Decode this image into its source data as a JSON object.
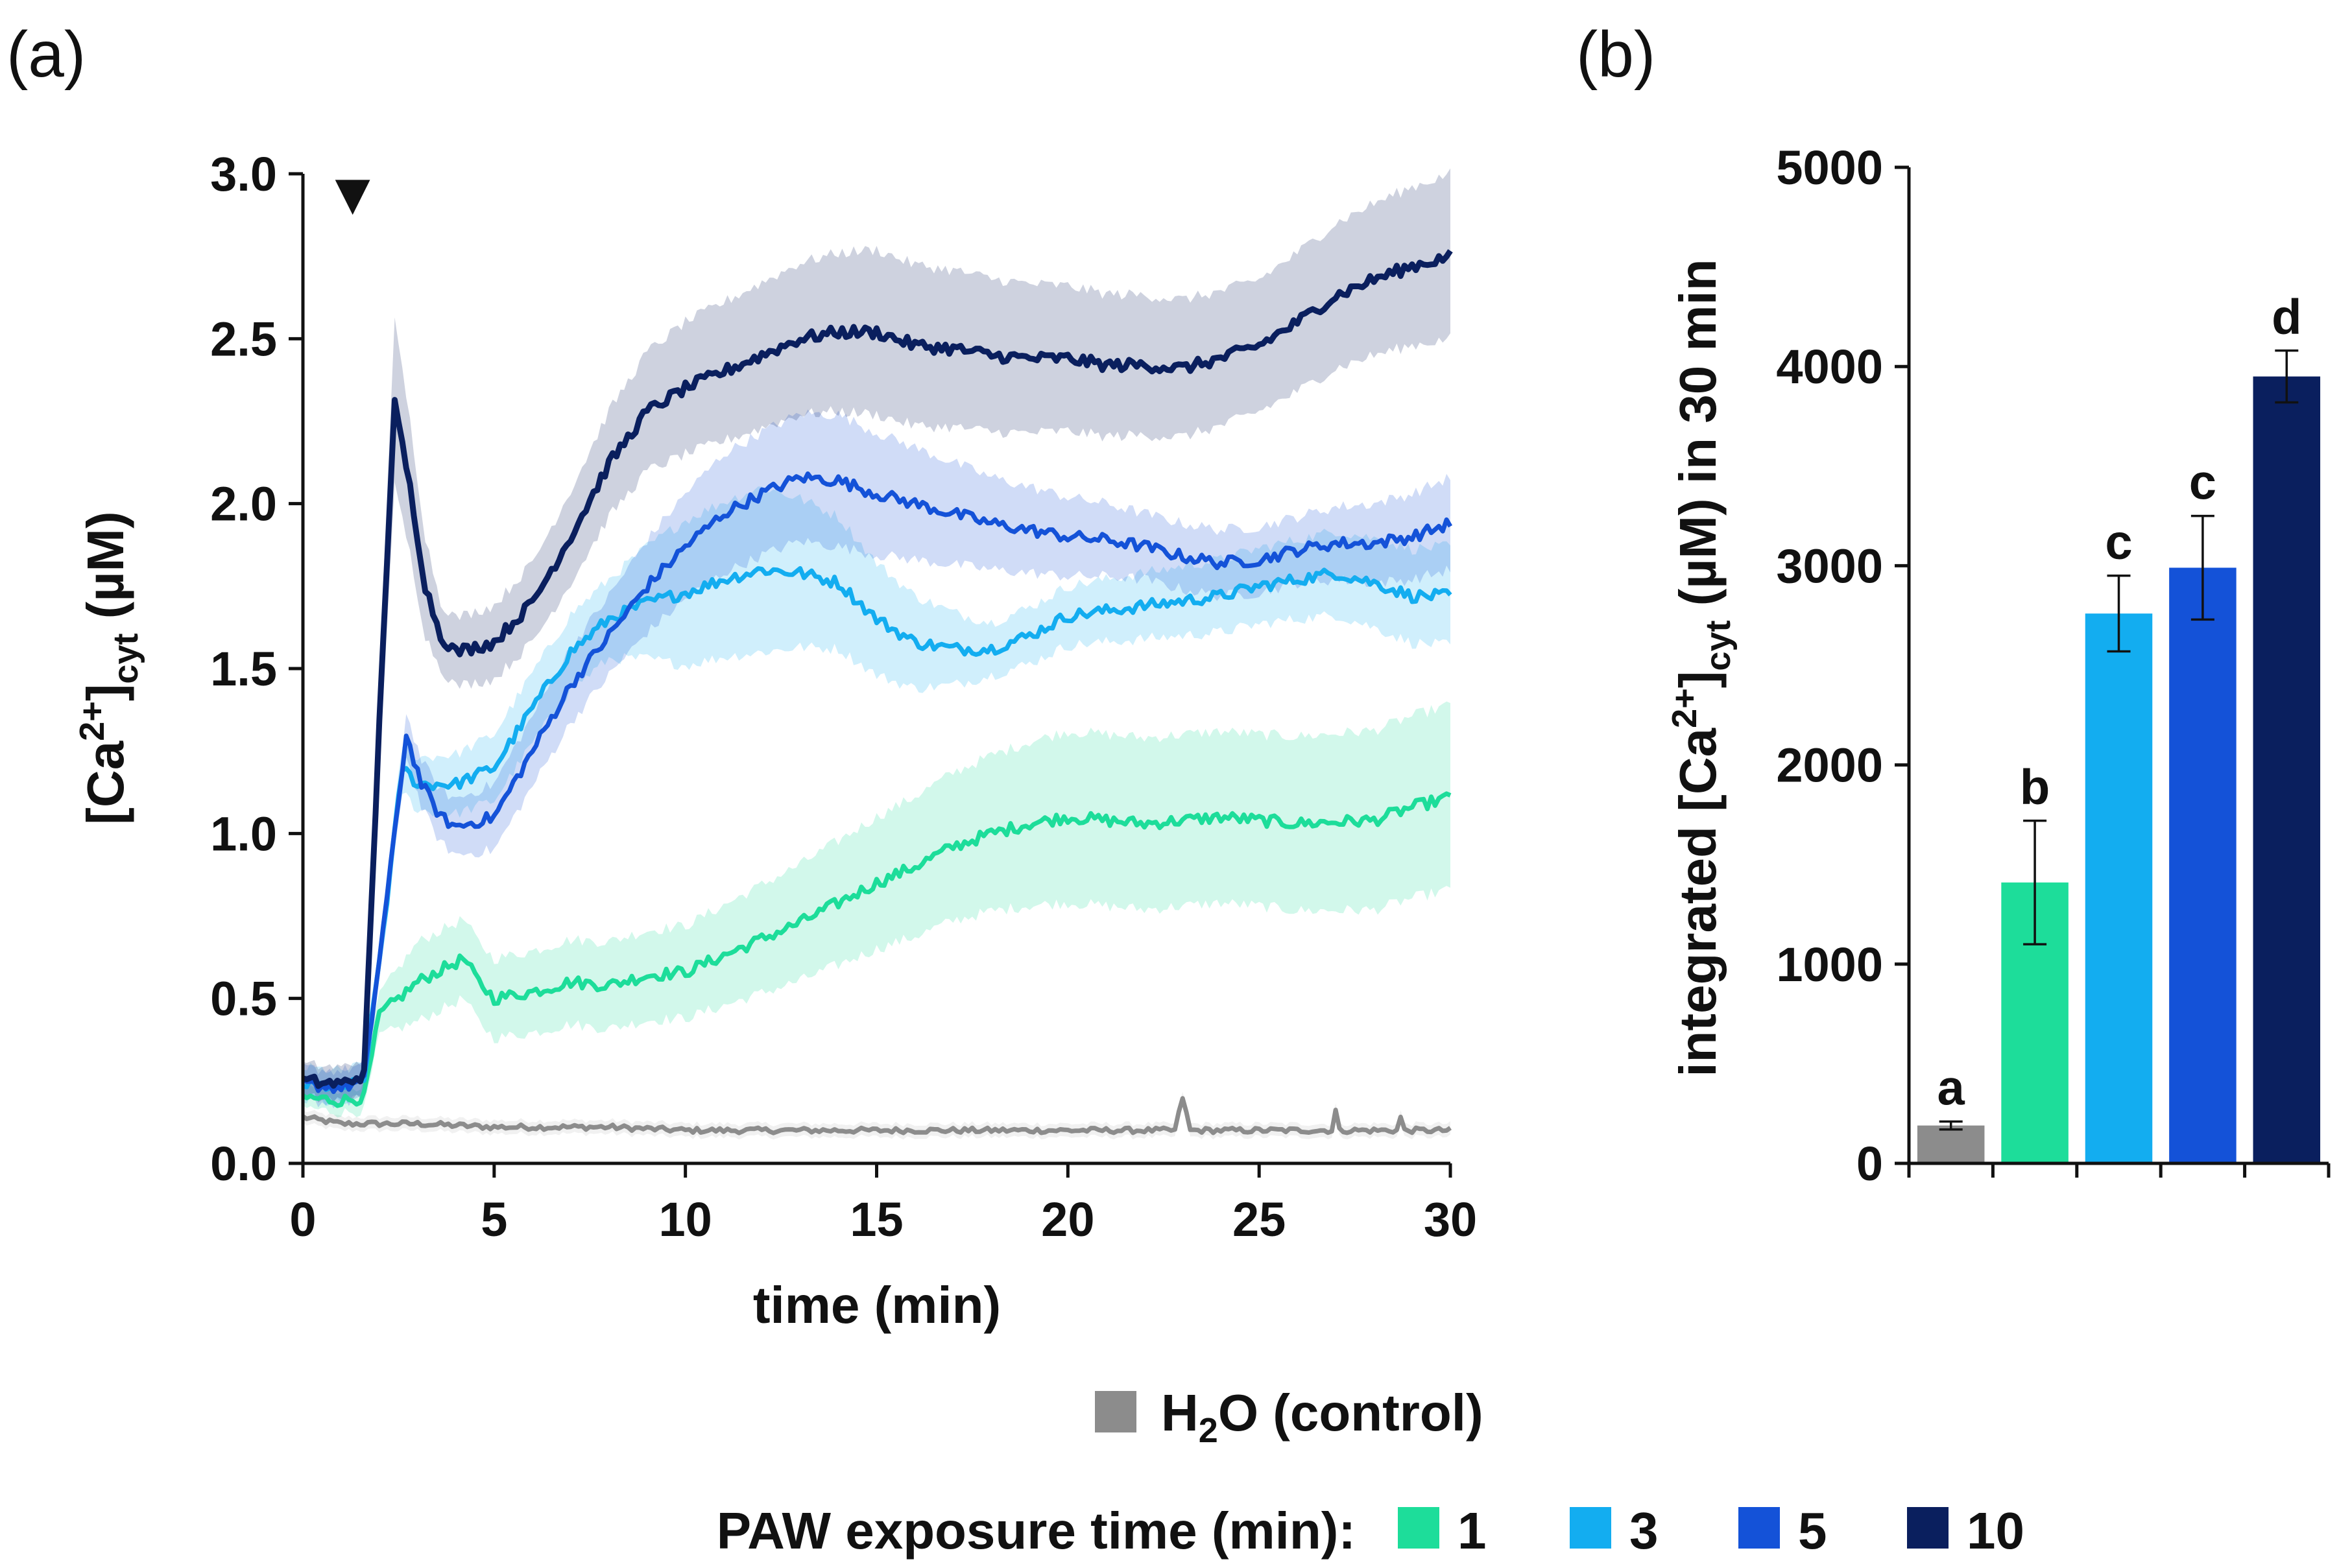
{
  "chart_data": [
    {
      "panel": "(a)",
      "type": "line",
      "ylabel_base": "[Ca",
      "ylabel_sup": "2+",
      "ylabel_close": "]",
      "ylabel_sub": "cyt",
      "ylabel_unit": " (µM)",
      "xlabel": "time (min)",
      "xlim": [
        0,
        30
      ],
      "ylim": [
        0,
        3
      ],
      "xticks": [
        "0",
        "5",
        "10",
        "15",
        "20",
        "25",
        "30"
      ],
      "yticks": [
        "0.0",
        "0.5",
        "1.0",
        "1.5",
        "2.0",
        "2.5",
        "3.0"
      ],
      "annotation": "▼",
      "annotation_x": 1.3,
      "series": [
        {
          "name": "H2O (control)",
          "color": "#8c8c8c",
          "points": [
            [
              0,
              0.14
            ],
            [
              1,
              0.12
            ],
            [
              2,
              0.12
            ],
            [
              3,
              0.12
            ],
            [
              5,
              0.11
            ],
            [
              8,
              0.11
            ],
            [
              10,
              0.1
            ],
            [
              15,
              0.1
            ],
            [
              20,
              0.1
            ],
            [
              22.8,
              0.1
            ],
            [
              23,
              0.2
            ],
            [
              23.2,
              0.1
            ],
            [
              26.9,
              0.1
            ],
            [
              27,
              0.16
            ],
            [
              27.1,
              0.1
            ],
            [
              28.6,
              0.1
            ],
            [
              28.7,
              0.14
            ],
            [
              28.8,
              0.1
            ],
            [
              30,
              0.1
            ]
          ],
          "sd": [
            [
              0,
              0.02
            ],
            [
              30,
              0.02
            ]
          ]
        },
        {
          "name": "1",
          "color": "#1ddd9a",
          "points": [
            [
              0,
              0.2
            ],
            [
              1,
              0.19
            ],
            [
              1.6,
              0.2
            ],
            [
              2,
              0.45
            ],
            [
              2.5,
              0.5
            ],
            [
              3,
              0.55
            ],
            [
              3.5,
              0.58
            ],
            [
              4.2,
              0.62
            ],
            [
              4.6,
              0.55
            ],
            [
              5,
              0.5
            ],
            [
              6,
              0.52
            ],
            [
              7,
              0.55
            ],
            [
              8,
              0.54
            ],
            [
              9,
              0.57
            ],
            [
              10,
              0.58
            ],
            [
              11,
              0.63
            ],
            [
              12,
              0.68
            ],
            [
              13,
              0.73
            ],
            [
              14,
              0.79
            ],
            [
              15,
              0.85
            ],
            [
              16,
              0.9
            ],
            [
              17,
              0.96
            ],
            [
              18,
              1.0
            ],
            [
              19,
              1.03
            ],
            [
              20,
              1.05
            ],
            [
              22,
              1.03
            ],
            [
              24,
              1.05
            ],
            [
              26,
              1.03
            ],
            [
              28,
              1.04
            ],
            [
              29,
              1.08
            ],
            [
              30,
              1.11
            ]
          ],
          "sd": [
            [
              0,
              0.03
            ],
            [
              1.6,
              0.04
            ],
            [
              3,
              0.12
            ],
            [
              5,
              0.12
            ],
            [
              10,
              0.14
            ],
            [
              15,
              0.2
            ],
            [
              20,
              0.26
            ],
            [
              25,
              0.26
            ],
            [
              30,
              0.28
            ]
          ]
        },
        {
          "name": "3",
          "color": "#13adf0",
          "points": [
            [
              0,
              0.24
            ],
            [
              1,
              0.23
            ],
            [
              1.6,
              0.25
            ],
            [
              2.2,
              0.8
            ],
            [
              2.6,
              1.2
            ],
            [
              3,
              1.15
            ],
            [
              4,
              1.15
            ],
            [
              5,
              1.2
            ],
            [
              6,
              1.38
            ],
            [
              7,
              1.55
            ],
            [
              8,
              1.65
            ],
            [
              9,
              1.7
            ],
            [
              10,
              1.73
            ],
            [
              11,
              1.77
            ],
            [
              12,
              1.8
            ],
            [
              13,
              1.79
            ],
            [
              14,
              1.76
            ],
            [
              15,
              1.65
            ],
            [
              16,
              1.58
            ],
            [
              17,
              1.56
            ],
            [
              18,
              1.56
            ],
            [
              19,
              1.6
            ],
            [
              20,
              1.66
            ],
            [
              22,
              1.69
            ],
            [
              24,
              1.72
            ],
            [
              25,
              1.75
            ],
            [
              26,
              1.77
            ],
            [
              27,
              1.79
            ],
            [
              28,
              1.76
            ],
            [
              29,
              1.72
            ],
            [
              30,
              1.72
            ]
          ],
          "sd": [
            [
              0,
              0.05
            ],
            [
              1.6,
              0.05
            ],
            [
              3,
              0.08
            ],
            [
              5,
              0.1
            ],
            [
              8,
              0.12
            ],
            [
              10,
              0.22
            ],
            [
              12,
              0.25
            ],
            [
              14,
              0.2
            ],
            [
              18,
              0.08
            ],
            [
              22,
              0.1
            ],
            [
              26,
              0.12
            ],
            [
              30,
              0.15
            ]
          ]
        },
        {
          "name": "5",
          "color": "#1452d8",
          "points": [
            [
              0,
              0.24
            ],
            [
              1,
              0.23
            ],
            [
              1.6,
              0.25
            ],
            [
              2.3,
              0.9
            ],
            [
              2.7,
              1.3
            ],
            [
              3.1,
              1.15
            ],
            [
              3.6,
              1.05
            ],
            [
              4,
              1.02
            ],
            [
              5,
              1.05
            ],
            [
              6,
              1.25
            ],
            [
              7,
              1.45
            ],
            [
              8,
              1.6
            ],
            [
              9,
              1.75
            ],
            [
              10,
              1.87
            ],
            [
              11,
              1.97
            ],
            [
              12,
              2.03
            ],
            [
              13,
              2.08
            ],
            [
              14,
              2.07
            ],
            [
              15,
              2.03
            ],
            [
              16,
              2.0
            ],
            [
              17,
              1.97
            ],
            [
              18,
              1.94
            ],
            [
              19,
              1.92
            ],
            [
              20,
              1.9
            ],
            [
              21,
              1.89
            ],
            [
              22,
              1.87
            ],
            [
              23,
              1.84
            ],
            [
              24,
              1.82
            ],
            [
              25,
              1.83
            ],
            [
              26,
              1.86
            ],
            [
              27,
              1.88
            ],
            [
              28,
              1.88
            ],
            [
              29,
              1.9
            ],
            [
              30,
              1.94
            ]
          ],
          "sd": [
            [
              0,
              0.05
            ],
            [
              1.6,
              0.05
            ],
            [
              3,
              0.07
            ],
            [
              5,
              0.1
            ],
            [
              8,
              0.12
            ],
            [
              11,
              0.18
            ],
            [
              14,
              0.2
            ],
            [
              18,
              0.14
            ],
            [
              22,
              0.1
            ],
            [
              26,
              0.1
            ],
            [
              30,
              0.14
            ]
          ]
        },
        {
          "name": "10",
          "color": "#0a1f5e",
          "points": [
            [
              0,
              0.25
            ],
            [
              1,
              0.24
            ],
            [
              1.6,
              0.27
            ],
            [
              2.1,
              1.6
            ],
            [
              2.4,
              2.3
            ],
            [
              2.8,
              2.05
            ],
            [
              3.2,
              1.75
            ],
            [
              3.6,
              1.6
            ],
            [
              4,
              1.55
            ],
            [
              5,
              1.58
            ],
            [
              6,
              1.7
            ],
            [
              7,
              1.9
            ],
            [
              8,
              2.12
            ],
            [
              9,
              2.28
            ],
            [
              10,
              2.35
            ],
            [
              11,
              2.4
            ],
            [
              12,
              2.45
            ],
            [
              13,
              2.5
            ],
            [
              14,
              2.52
            ],
            [
              15,
              2.52
            ],
            [
              16,
              2.48
            ],
            [
              17,
              2.47
            ],
            [
              18,
              2.45
            ],
            [
              19,
              2.44
            ],
            [
              20,
              2.44
            ],
            [
              21,
              2.42
            ],
            [
              22,
              2.42
            ],
            [
              23,
              2.41
            ],
            [
              24,
              2.44
            ],
            [
              25,
              2.48
            ],
            [
              26,
              2.55
            ],
            [
              27,
              2.63
            ],
            [
              28,
              2.68
            ],
            [
              29,
              2.72
            ],
            [
              30,
              2.75
            ]
          ],
          "sd": [
            [
              0,
              0.05
            ],
            [
              1.6,
              0.05
            ],
            [
              2.4,
              0.25
            ],
            [
              3.6,
              0.1
            ],
            [
              6,
              0.12
            ],
            [
              10,
              0.2
            ],
            [
              15,
              0.25
            ],
            [
              20,
              0.22
            ],
            [
              25,
              0.2
            ],
            [
              30,
              0.25
            ]
          ]
        }
      ]
    },
    {
      "panel": "(b)",
      "type": "bar",
      "ylabel_base": "integrated [Ca",
      "ylabel_sup": "2+",
      "ylabel_close": "]",
      "ylabel_sub": "cyt",
      "ylabel_unit": " (µM) in 30 min",
      "ylim": [
        0,
        5000
      ],
      "yticks": [
        "0",
        "1000",
        "2000",
        "3000",
        "4000",
        "5000"
      ],
      "categories": [
        "H2O (control)",
        "1",
        "3",
        "5",
        "10"
      ],
      "values": [
        190,
        1410,
        2760,
        2990,
        3950
      ],
      "errors": [
        20,
        310,
        190,
        260,
        130
      ],
      "colors": [
        "#8c8c8c",
        "#1ddd9a",
        "#13adf0",
        "#1452d8",
        "#0a1f5e"
      ],
      "letters": [
        "a",
        "b",
        "c",
        "c",
        "d"
      ]
    }
  ],
  "legend": {
    "control_h": "H",
    "control_sub": "2",
    "control_rest": "O (control)",
    "control_color": "#8c8c8c",
    "paw_label": "PAW exposure time (min):",
    "items": [
      {
        "label": "1",
        "color": "#1ddd9a"
      },
      {
        "label": "3",
        "color": "#13adf0"
      },
      {
        "label": "5",
        "color": "#1452d8"
      },
      {
        "label": "10",
        "color": "#0a1f5e"
      }
    ]
  }
}
